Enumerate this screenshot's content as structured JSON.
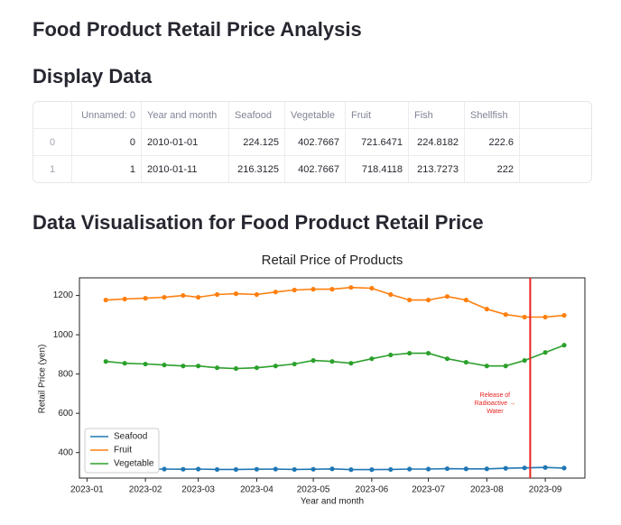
{
  "header": {
    "title": "Food Product Retail Price Analysis"
  },
  "table_section": {
    "heading": "Display Data",
    "table": {
      "columns": [
        "Unnamed: 0",
        "Year and month",
        "Seafood",
        "Vegetable",
        "Fruit",
        "Fish",
        "Shellfish"
      ],
      "index": [
        "0",
        "1"
      ],
      "rows": [
        [
          "0",
          "2010-01-01",
          "224.125",
          "402.7667",
          "721.6471",
          "224.8182",
          "222.6"
        ],
        [
          "1",
          "2010-01-11",
          "216.3125",
          "402.7667",
          "718.4118",
          "213.7273",
          "222"
        ]
      ]
    }
  },
  "chart_section": {
    "heading": "Data Visualisation for Food Product Retail Price"
  },
  "chart_data": {
    "type": "line",
    "title": "Retail Price of Products",
    "x_label": "Year and month",
    "y_label": "Retail Price (yen)",
    "x": [
      "2023-01-11",
      "2023-01-21",
      "2023-02-01",
      "2023-02-11",
      "2023-02-21",
      "2023-03-01",
      "2023-03-11",
      "2023-03-21",
      "2023-04-01",
      "2023-04-11",
      "2023-04-21",
      "2023-05-01",
      "2023-05-11",
      "2023-05-21",
      "2023-06-01",
      "2023-06-11",
      "2023-06-21",
      "2023-07-01",
      "2023-07-11",
      "2023-07-21",
      "2023-08-01",
      "2023-08-11",
      "2023-08-21",
      "2023-09-01",
      "2023-09-11"
    ],
    "series": [
      {
        "name": "Seafood",
        "color": "#1f77b4",
        "values": [
          318,
          317,
          316,
          316,
          315,
          316,
          314,
          314,
          315,
          316,
          314,
          315,
          317,
          313,
          313,
          314,
          316,
          316,
          318,
          317,
          317,
          320,
          322,
          324,
          321
        ]
      },
      {
        "name": "Fruit",
        "color": "#ff7f0e",
        "values": [
          1177,
          1182,
          1186,
          1191,
          1200,
          1191,
          1205,
          1209,
          1205,
          1218,
          1228,
          1232,
          1232,
          1241,
          1237,
          1205,
          1177,
          1177,
          1195,
          1177,
          1131,
          1103,
          1090,
          1090,
          1099
        ]
      },
      {
        "name": "Vegetable",
        "color": "#2ca02c",
        "values": [
          864,
          855,
          851,
          846,
          841,
          841,
          832,
          828,
          832,
          841,
          851,
          869,
          864,
          855,
          878,
          897,
          906,
          906,
          878,
          860,
          841,
          841,
          869,
          910,
          947
        ]
      }
    ],
    "xlim": [
      "2022-12-28",
      "2023-09-22"
    ],
    "xticks": [
      "2023-01",
      "2023-02",
      "2023-03",
      "2023-04",
      "2023-05",
      "2023-06",
      "2023-07",
      "2023-08",
      "2023-09"
    ],
    "ylim": [
      270,
      1290
    ],
    "yticks": [
      400,
      600,
      800,
      1000,
      1200
    ],
    "grid": false,
    "legend": "lower left",
    "annotation": {
      "x": "2023-08-24",
      "color": "#e8231f",
      "text": [
        "Release of",
        "Radioactive →",
        "Water"
      ]
    }
  }
}
